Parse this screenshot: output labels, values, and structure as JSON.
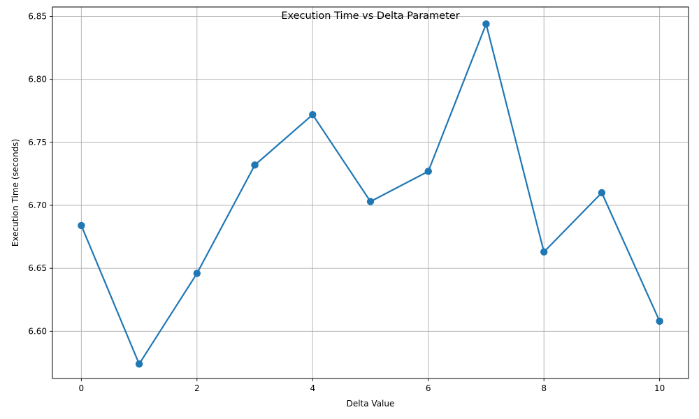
{
  "chart_data": {
    "type": "line",
    "title": "Execution Time vs Delta Parameter",
    "xlabel": "Delta Value",
    "ylabel": "Execution Time (seconds)",
    "x": [
      0,
      1,
      2,
      3,
      4,
      5,
      6,
      7,
      8,
      9,
      10
    ],
    "series": [
      {
        "values": [
          6.684,
          6.574,
          6.646,
          6.732,
          6.772,
          6.703,
          6.727,
          6.844,
          6.663,
          6.71,
          6.608
        ],
        "color": "#1f77b4",
        "marker": "circle"
      }
    ],
    "xlim": [
      -0.5,
      10.5
    ],
    "ylim": [
      6.5625,
      6.8575
    ],
    "xticks": [
      0,
      2,
      4,
      6,
      8,
      10
    ],
    "xtick_labels": [
      "0",
      "2",
      "4",
      "6",
      "8",
      "10"
    ],
    "yticks": [
      6.6,
      6.65,
      6.7,
      6.75,
      6.8,
      6.85
    ],
    "ytick_labels": [
      "6.60",
      "6.65",
      "6.70",
      "6.75",
      "6.80",
      "6.85"
    ],
    "grid": true
  }
}
